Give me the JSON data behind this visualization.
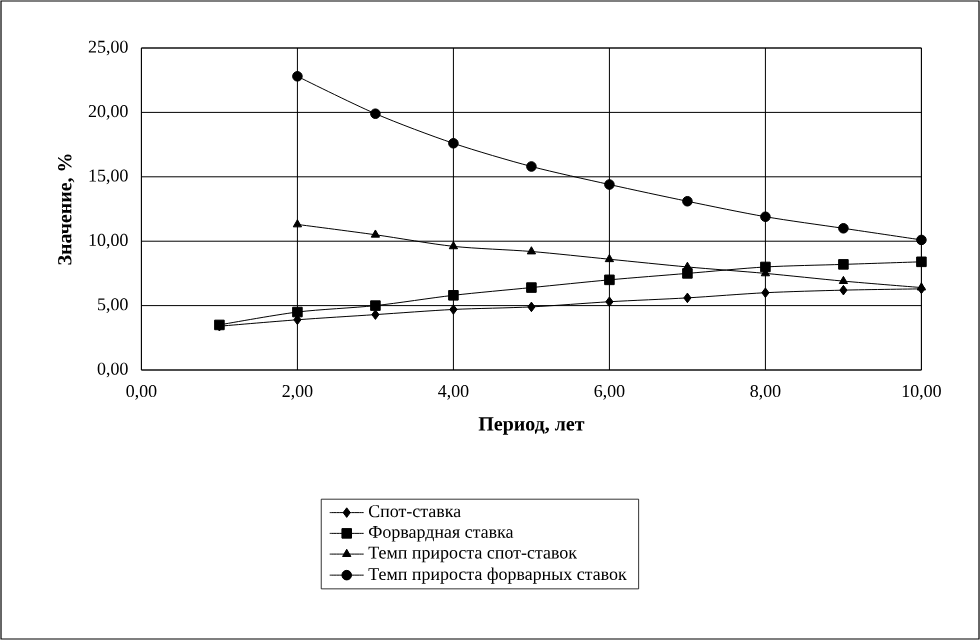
{
  "chart_data": {
    "type": "line",
    "xlabel": "Период, лет",
    "ylabel": "Значение, %",
    "xlim": [
      0,
      10
    ],
    "ylim": [
      0,
      25
    ],
    "xticks": [
      {
        "value": 0,
        "label": "0,00"
      },
      {
        "value": 2,
        "label": "2,00"
      },
      {
        "value": 4,
        "label": "4,00"
      },
      {
        "value": 6,
        "label": "6,00"
      },
      {
        "value": 8,
        "label": "8,00"
      },
      {
        "value": 10,
        "label": "10,00"
      }
    ],
    "yticks": [
      {
        "value": 0,
        "label": "0,00"
      },
      {
        "value": 5,
        "label": "5,00"
      },
      {
        "value": 10,
        "label": "10,00"
      },
      {
        "value": 15,
        "label": "15,00"
      },
      {
        "value": 20,
        "label": "20,00"
      },
      {
        "value": 25,
        "label": "25,00"
      }
    ],
    "grid": true,
    "legend": "bottom",
    "line_style": "solid",
    "series": [
      {
        "name": "Спот-ставка",
        "color": "#000000",
        "marker": "diamond",
        "x": [
          1,
          2,
          3,
          4,
          5,
          6,
          7,
          8,
          9,
          10
        ],
        "values": [
          3.4,
          3.9,
          4.3,
          4.7,
          4.9,
          5.3,
          5.6,
          6.0,
          6.2,
          6.3
        ]
      },
      {
        "name": "Форвардная ставка",
        "color": "#000000",
        "marker": "square",
        "x": [
          1,
          2,
          3,
          4,
          5,
          6,
          7,
          8,
          9,
          10
        ],
        "values": [
          3.5,
          4.5,
          5.0,
          5.8,
          6.4,
          7.0,
          7.5,
          8.0,
          8.2,
          8.4
        ]
      },
      {
        "name": "Темп прироста спот-ставок",
        "color": "#000000",
        "marker": "triangle",
        "x": [
          2,
          3,
          4,
          5,
          6,
          7,
          8,
          9,
          10
        ],
        "values": [
          11.3,
          10.5,
          9.6,
          9.2,
          8.6,
          8.0,
          7.5,
          6.9,
          6.4
        ]
      },
      {
        "name": "Темп прироста форварных ставок",
        "color": "#000000",
        "marker": "circle",
        "x": [
          2,
          3,
          4,
          5,
          6,
          7,
          8,
          9,
          10
        ],
        "values": [
          22.8,
          19.9,
          17.6,
          15.8,
          14.4,
          13.1,
          11.9,
          11.0,
          10.1
        ]
      }
    ]
  }
}
